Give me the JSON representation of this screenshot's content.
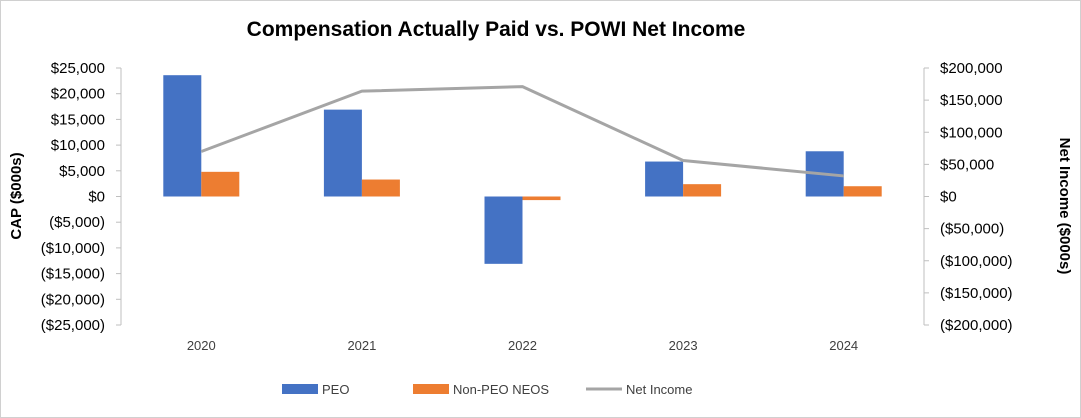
{
  "chart_data": {
    "type": "bar+line",
    "title": "Compensation Actually Paid vs. POWI Net Income",
    "categories": [
      "2020",
      "2021",
      "2022",
      "2023",
      "2024"
    ],
    "series": [
      {
        "name": "PEO",
        "axis": "left",
        "kind": "bar",
        "color": "#4472C4",
        "values": [
          23600,
          16900,
          -13100,
          6800,
          8800
        ]
      },
      {
        "name": "Non-PEO NEOS",
        "axis": "left",
        "kind": "bar",
        "color": "#ED7D31",
        "values": [
          4800,
          3300,
          -700,
          2400,
          2000
        ]
      },
      {
        "name": "Net Income",
        "axis": "right",
        "kind": "line",
        "color": "#A5A5A5",
        "values": [
          70000,
          164000,
          171000,
          56000,
          32000
        ]
      }
    ],
    "ylabel": "CAP ($000s)",
    "y2label": "Net Income ($000s)",
    "ylim": [
      -25000,
      25000
    ],
    "y2lim": [
      -200000,
      200000
    ],
    "yticks": [
      "$25,000",
      "$20,000",
      "$15,000",
      "$10,000",
      "$5,000",
      "$0",
      "($5,000)",
      "($10,000)",
      "($15,000)",
      "($20,000)",
      "($25,000)"
    ],
    "y2ticks": [
      "$200,000",
      "$150,000",
      "$100,000",
      "$50,000",
      "$0",
      "($50,000)",
      "($100,000)",
      "($150,000)",
      "($200,000)"
    ],
    "legend_position": "bottom",
    "grid": false
  }
}
